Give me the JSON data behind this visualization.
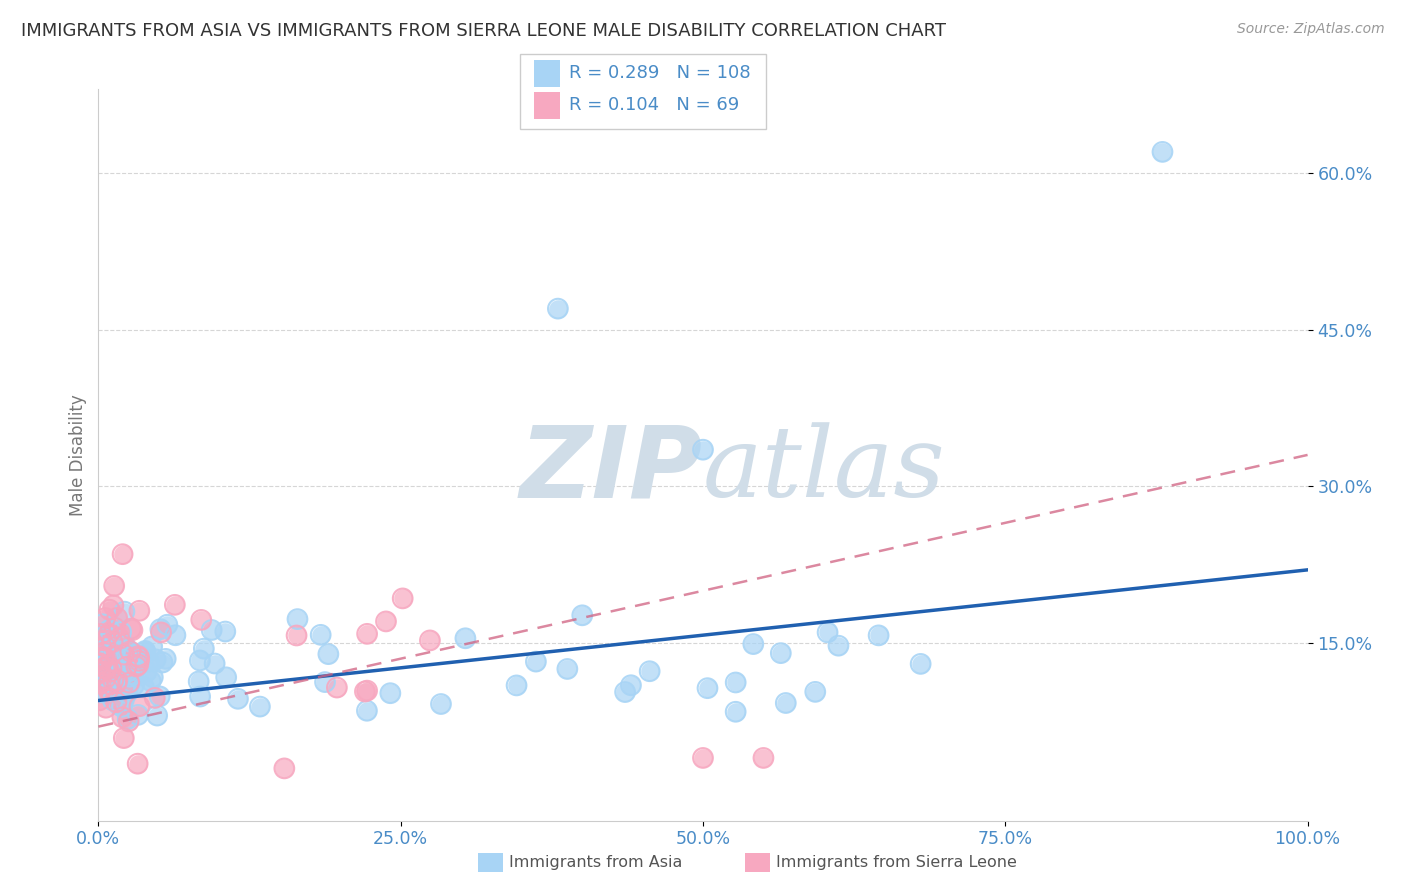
{
  "title": "IMMIGRANTS FROM ASIA VS IMMIGRANTS FROM SIERRA LEONE MALE DISABILITY CORRELATION CHART",
  "source": "Source: ZipAtlas.com",
  "ylabel": "Male Disability",
  "legend_label1": "Immigrants from Asia",
  "legend_label2": "Immigrants from Sierra Leone",
  "r1": 0.289,
  "n1": 108,
  "r2": 0.104,
  "n2": 69,
  "color1": "#a8d4f5",
  "color2": "#f7a8c0",
  "line_color1": "#2060b0",
  "line_color2": "#d06080",
  "xlim": [
    0.0,
    1.0
  ],
  "ylim": [
    -0.02,
    0.68
  ],
  "x_ticks": [
    0.0,
    0.25,
    0.5,
    0.75,
    1.0
  ],
  "x_tick_labels": [
    "0.0%",
    "25.0%",
    "50.0%",
    "75.0%",
    "100.0%"
  ],
  "y_tick_labels": [
    "15.0%",
    "30.0%",
    "45.0%",
    "60.0%"
  ],
  "y_ticks": [
    0.15,
    0.3,
    0.45,
    0.6
  ],
  "background_color": "#ffffff",
  "grid_color": "#cccccc",
  "title_color": "#333333",
  "title_fontsize": 13,
  "axis_label_color": "#777777",
  "tick_label_color": "#4a8cc7",
  "source_color": "#999999",
  "watermark_color": "#d0dde8",
  "legend_r_color": "#4a8cc7",
  "legend_n_color": "#cc3333",
  "blue_line_intercept": 0.095,
  "blue_line_slope": 0.125,
  "pink_line_intercept": 0.07,
  "pink_line_slope": 0.26
}
